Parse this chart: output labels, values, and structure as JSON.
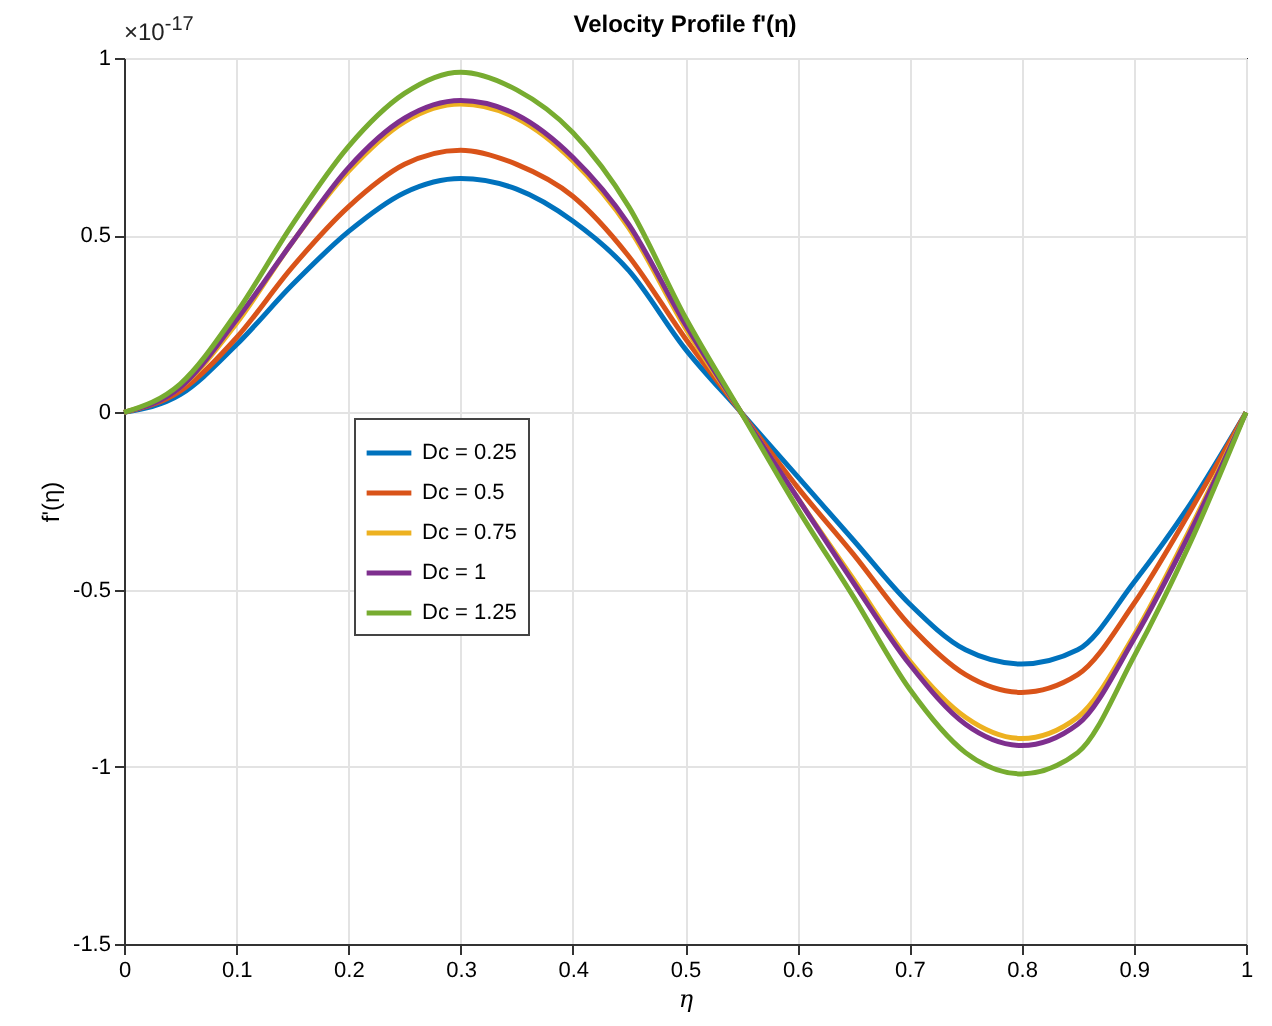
{
  "chart_data": {
    "type": "line",
    "title": "Velocity Profile f'(η)",
    "xlabel": "η",
    "ylabel": "f'(η)",
    "annotations": [
      "×10$^{-17}$"
    ],
    "x": [
      0,
      0.05,
      0.1,
      0.15,
      0.2,
      0.25,
      0.3,
      0.35,
      0.4,
      0.45,
      0.5,
      0.55,
      0.6,
      0.65,
      0.7,
      0.75,
      0.8,
      0.85,
      0.9,
      0.95,
      1
    ],
    "series": [
      {
        "name": "Dc = 0.25",
        "color": "#0072bd",
        "values": [
          0,
          0.05,
          0.19,
          0.36,
          0.51,
          0.62,
          0.66,
          0.63,
          0.54,
          0.4,
          0.18,
          0,
          -0.18,
          -0.36,
          -0.54,
          -0.67,
          -0.71,
          -0.67,
          -0.48,
          -0.26,
          0
        ]
      },
      {
        "name": "Dc = 0.5",
        "color": "#d95319",
        "values": [
          0,
          0.06,
          0.21,
          0.41,
          0.58,
          0.7,
          0.74,
          0.7,
          0.61,
          0.44,
          0.21,
          0,
          -0.21,
          -0.4,
          -0.6,
          -0.74,
          -0.79,
          -0.74,
          -0.54,
          -0.28,
          0
        ]
      },
      {
        "name": "Dc = 0.75",
        "color": "#edb120",
        "values": [
          0,
          0.07,
          0.25,
          0.48,
          0.68,
          0.82,
          0.87,
          0.83,
          0.71,
          0.52,
          0.24,
          0,
          -0.24,
          -0.47,
          -0.7,
          -0.86,
          -0.92,
          -0.86,
          -0.63,
          -0.33,
          0
        ]
      },
      {
        "name": "Dc = 1",
        "color": "#7e2f8e",
        "values": [
          0,
          0.07,
          0.26,
          0.48,
          0.69,
          0.83,
          0.88,
          0.84,
          0.72,
          0.53,
          0.25,
          0,
          -0.24,
          -0.48,
          -0.71,
          -0.88,
          -0.94,
          -0.88,
          -0.64,
          -0.34,
          0
        ]
      },
      {
        "name": "Dc = 1.25",
        "color": "#77ac30",
        "values": [
          0,
          0.08,
          0.28,
          0.53,
          0.75,
          0.9,
          0.96,
          0.91,
          0.79,
          0.58,
          0.27,
          0,
          -0.27,
          -0.52,
          -0.78,
          -0.96,
          -1.02,
          -0.96,
          -0.69,
          -0.37,
          0
        ]
      }
    ],
    "xlim": [
      0,
      1
    ],
    "xticks": [
      0,
      0.1,
      0.2,
      0.3,
      0.4,
      0.5,
      0.6,
      0.7,
      0.8,
      0.9,
      1
    ],
    "ylim": [
      -1.5,
      1
    ],
    "yticks": [
      -1.5,
      -1,
      -0.5,
      0,
      0.5,
      1
    ],
    "grid": true,
    "legend": "left",
    "marker": "none",
    "line_style": "solid"
  }
}
